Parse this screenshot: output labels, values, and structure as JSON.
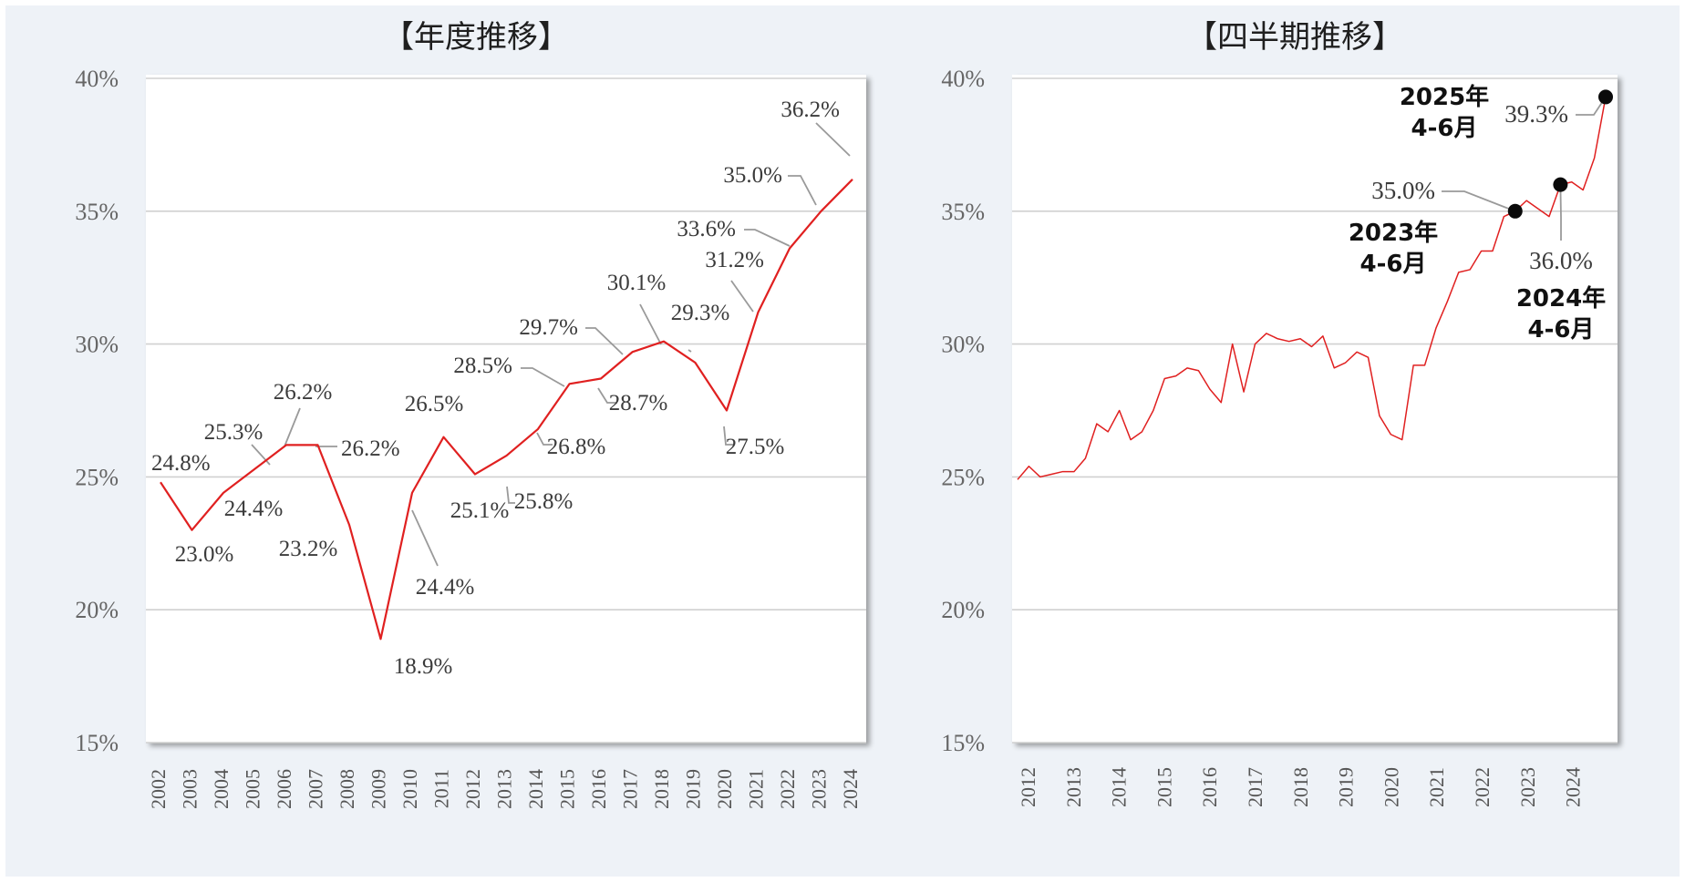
{
  "colors": {
    "line": "#e02020",
    "grid": "#d0d0d0",
    "leader": "#9a9a9a",
    "background": "#eef2f7",
    "plot_bg": "#ffffff"
  },
  "chart_data": [
    {
      "type": "line",
      "title": "【年度推移】",
      "ylim": [
        0.15,
        0.4
      ],
      "yticks": [
        0.15,
        0.2,
        0.25,
        0.3,
        0.35,
        0.4
      ],
      "ytick_labels": [
        "15%",
        "20%",
        "25%",
        "30%",
        "35%",
        "40%"
      ],
      "grid": true,
      "categories": [
        "2002",
        "2003",
        "2004",
        "2005",
        "2006",
        "2007",
        "2008",
        "2009",
        "2010",
        "2011",
        "2012",
        "2013",
        "2014",
        "2015",
        "2016",
        "2017",
        "2018",
        "2019",
        "2020",
        "2021",
        "2022",
        "2023",
        "2024"
      ],
      "values": [
        0.248,
        0.23,
        0.244,
        0.253,
        0.262,
        0.262,
        0.232,
        0.189,
        0.244,
        0.265,
        0.251,
        0.258,
        0.268,
        0.285,
        0.287,
        0.297,
        0.301,
        0.293,
        0.275,
        0.312,
        0.336,
        0.35,
        0.362
      ],
      "labels": [
        "24.8%",
        "23.0%",
        "24.4%",
        "25.3%",
        "26.2%",
        "26.2%",
        "23.2%",
        "18.9%",
        "24.4%",
        "26.5%",
        "25.1%",
        "25.8%",
        "26.8%",
        "28.5%",
        "28.7%",
        "29.7%",
        "30.1%",
        "29.3%",
        "27.5%",
        "31.2%",
        "33.6%",
        "35.0%",
        "36.2%"
      ]
    },
    {
      "type": "line",
      "title": "【四半期推移】",
      "ylim": [
        0.15,
        0.4
      ],
      "yticks": [
        0.15,
        0.2,
        0.25,
        0.3,
        0.35,
        0.4
      ],
      "ytick_labels": [
        "15%",
        "20%",
        "25%",
        "30%",
        "35%",
        "40%"
      ],
      "grid": true,
      "xticks": [
        "2012",
        "2013",
        "2014",
        "2015",
        "2016",
        "2017",
        "2018",
        "2019",
        "2020",
        "2021",
        "2022",
        "2023",
        "2024"
      ],
      "values": [
        0.249,
        0.254,
        0.25,
        0.251,
        0.252,
        0.252,
        0.257,
        0.27,
        0.267,
        0.275,
        0.264,
        0.267,
        0.275,
        0.287,
        0.288,
        0.291,
        0.29,
        0.283,
        0.278,
        0.3,
        0.282,
        0.3,
        0.304,
        0.302,
        0.301,
        0.302,
        0.299,
        0.303,
        0.291,
        0.293,
        0.297,
        0.295,
        0.273,
        0.266,
        0.264,
        0.292,
        0.292,
        0.306,
        0.316,
        0.327,
        0.328,
        0.335,
        0.335,
        0.348,
        0.35,
        0.354,
        0.351,
        0.348,
        0.36,
        0.361,
        0.358,
        0.37,
        0.393
      ],
      "callouts": [
        {
          "index": 44,
          "year": "2023年",
          "period": "4-6月",
          "value": "35.0%"
        },
        {
          "index": 48,
          "year": "2024年",
          "period": "4-6月",
          "value": "36.0%"
        },
        {
          "index": 52,
          "year": "2025年",
          "period": "4-6月",
          "value": "39.3%"
        }
      ]
    }
  ]
}
